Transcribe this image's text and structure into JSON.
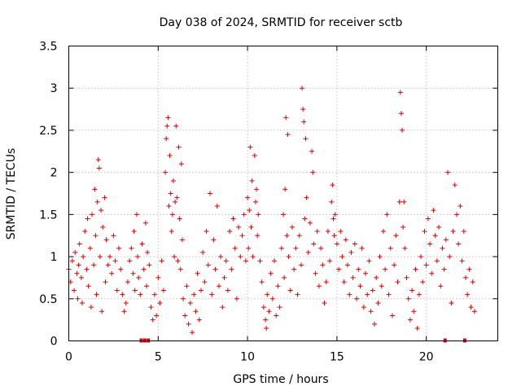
{
  "chart_data": {
    "type": "scatter",
    "title": "Day 038 of 2024, SRMTID for receiver sctb",
    "xlabel": "GPS time / hours",
    "ylabel": "SRMTID / TECUs",
    "xlim": [
      0,
      24
    ],
    "ylim": [
      0,
      3.5
    ],
    "x_ticks": [
      0,
      5,
      10,
      15,
      20
    ],
    "y_ticks": [
      0,
      0.5,
      1,
      1.5,
      2,
      2.5,
      3,
      3.5
    ],
    "x_tick_labels": [
      "0",
      "5",
      "10",
      "15",
      "20"
    ],
    "y_tick_labels": [
      "0",
      "0.5",
      "1",
      "1.5",
      "2",
      "2.5",
      "3",
      "3.5"
    ],
    "grid": true,
    "marker": "plus",
    "color": "#e00000",
    "series": [
      {
        "name": "SRMTID",
        "points": [
          [
            0.0,
            0.85
          ],
          [
            0.1,
            0.7
          ],
          [
            0.2,
            0.95
          ],
          [
            0.3,
            0.6
          ],
          [
            0.35,
            1.05
          ],
          [
            0.45,
            0.8
          ],
          [
            0.5,
            0.5
          ],
          [
            0.55,
            0.9
          ],
          [
            0.6,
            1.15
          ],
          [
            0.7,
            0.75
          ],
          [
            0.75,
            0.45
          ],
          [
            0.8,
            1.0
          ],
          [
            0.9,
            1.3
          ],
          [
            1.0,
            0.85
          ],
          [
            1.05,
            1.45
          ],
          [
            1.1,
            0.65
          ],
          [
            1.2,
            1.1
          ],
          [
            1.25,
            0.4
          ],
          [
            1.3,
            1.5
          ],
          [
            1.4,
            0.9
          ],
          [
            1.45,
            1.8
          ],
          [
            1.5,
            1.25
          ],
          [
            1.55,
            0.55
          ],
          [
            1.6,
            1.65
          ],
          [
            1.65,
            2.15
          ],
          [
            1.7,
            2.05
          ],
          [
            1.75,
            1.0
          ],
          [
            1.8,
            1.55
          ],
          [
            1.85,
            0.35
          ],
          [
            1.9,
            1.35
          ],
          [
            2.0,
            1.7
          ],
          [
            2.05,
            0.7
          ],
          [
            2.1,
            1.2
          ],
          [
            2.2,
            0.9
          ],
          [
            2.3,
            1.0
          ],
          [
            2.4,
            0.8
          ],
          [
            2.5,
            1.25
          ],
          [
            2.6,
            0.95
          ],
          [
            2.7,
            0.6
          ],
          [
            2.8,
            1.1
          ],
          [
            2.9,
            0.85
          ],
          [
            3.0,
            0.55
          ],
          [
            3.1,
            0.35
          ],
          [
            3.2,
            0.45
          ],
          [
            3.3,
            0.7
          ],
          [
            3.4,
            0.95
          ],
          [
            3.5,
            1.1
          ],
          [
            3.6,
            0.8
          ],
          [
            3.65,
            1.3
          ],
          [
            3.7,
            0.6
          ],
          [
            3.8,
            1.5
          ],
          [
            3.85,
            1.0
          ],
          [
            3.9,
            0.75
          ],
          [
            4.0,
            0.55
          ],
          [
            4.1,
            1.15
          ],
          [
            4.2,
            0.85
          ],
          [
            4.3,
            1.4
          ],
          [
            4.35,
            0.65
          ],
          [
            4.4,
            1.05
          ],
          [
            4.5,
            0.9
          ],
          [
            4.6,
            0.4
          ],
          [
            4.7,
            0.25
          ],
          [
            4.8,
            0.55
          ],
          [
            4.9,
            0.3
          ],
          [
            5.0,
            0.75
          ],
          [
            5.1,
            0.45
          ],
          [
            5.2,
            0.95
          ],
          [
            5.3,
            0.6
          ],
          [
            5.4,
            2.0
          ],
          [
            5.45,
            2.4
          ],
          [
            5.5,
            2.55
          ],
          [
            5.55,
            2.65
          ],
          [
            5.6,
            1.6
          ],
          [
            5.65,
            2.2
          ],
          [
            5.7,
            1.75
          ],
          [
            5.75,
            1.3
          ],
          [
            5.8,
            1.5
          ],
          [
            5.85,
            1.9
          ],
          [
            5.9,
            1.0
          ],
          [
            5.95,
            1.65
          ],
          [
            6.0,
            2.55
          ],
          [
            6.05,
            1.7
          ],
          [
            6.1,
            0.95
          ],
          [
            6.15,
            2.3
          ],
          [
            6.2,
            1.45
          ],
          [
            6.25,
            0.85
          ],
          [
            6.3,
            2.1
          ],
          [
            6.35,
            1.2
          ],
          [
            6.4,
            0.5
          ],
          [
            6.5,
            0.3
          ],
          [
            6.6,
            0.65
          ],
          [
            6.7,
            0.2
          ],
          [
            6.8,
            0.45
          ],
          [
            6.9,
            0.1
          ],
          [
            7.0,
            0.55
          ],
          [
            7.1,
            0.35
          ],
          [
            7.2,
            0.8
          ],
          [
            7.3,
            0.25
          ],
          [
            7.4,
            0.6
          ],
          [
            7.5,
            1.05
          ],
          [
            7.6,
            0.7
          ],
          [
            7.7,
            1.3
          ],
          [
            7.8,
            0.9
          ],
          [
            7.9,
            1.75
          ],
          [
            8.0,
            0.55
          ],
          [
            8.1,
            1.2
          ],
          [
            8.2,
            0.85
          ],
          [
            8.3,
            1.6
          ],
          [
            8.4,
            0.65
          ],
          [
            8.5,
            1.0
          ],
          [
            8.6,
            0.4
          ],
          [
            8.7,
            0.75
          ],
          [
            8.8,
            0.95
          ],
          [
            8.9,
            0.6
          ],
          [
            9.0,
            1.3
          ],
          [
            9.1,
            0.85
          ],
          [
            9.2,
            1.45
          ],
          [
            9.3,
            1.1
          ],
          [
            9.4,
            0.5
          ],
          [
            9.5,
            1.35
          ],
          [
            9.6,
            1.0
          ],
          [
            9.7,
            1.25
          ],
          [
            9.8,
            1.5
          ],
          [
            9.9,
            0.95
          ],
          [
            10.0,
            1.7
          ],
          [
            10.05,
            1.1
          ],
          [
            10.1,
            1.55
          ],
          [
            10.15,
            2.3
          ],
          [
            10.2,
            1.35
          ],
          [
            10.25,
            1.9
          ],
          [
            10.3,
            1.0
          ],
          [
            10.4,
            2.2
          ],
          [
            10.45,
            1.65
          ],
          [
            10.5,
            1.8
          ],
          [
            10.55,
            1.25
          ],
          [
            10.6,
            1.5
          ],
          [
            10.7,
            0.95
          ],
          [
            10.8,
            0.7
          ],
          [
            10.9,
            0.4
          ],
          [
            11.0,
            0.25
          ],
          [
            11.05,
            0.15
          ],
          [
            11.1,
            0.55
          ],
          [
            11.2,
            0.35
          ],
          [
            11.3,
            0.8
          ],
          [
            11.4,
            0.5
          ],
          [
            11.5,
            0.95
          ],
          [
            11.6,
            0.3
          ],
          [
            11.7,
            0.65
          ],
          [
            11.8,
            0.4
          ],
          [
            11.9,
            1.1
          ],
          [
            12.0,
            1.5
          ],
          [
            12.05,
            0.75
          ],
          [
            12.1,
            1.8
          ],
          [
            12.15,
            2.65
          ],
          [
            12.2,
            1.25
          ],
          [
            12.25,
            2.45
          ],
          [
            12.3,
            1.0
          ],
          [
            12.4,
            0.6
          ],
          [
            12.5,
            1.35
          ],
          [
            12.6,
            0.85
          ],
          [
            12.7,
            1.1
          ],
          [
            12.8,
            0.55
          ],
          [
            12.9,
            1.25
          ],
          [
            13.0,
            0.9
          ],
          [
            13.05,
            3.0
          ],
          [
            13.1,
            2.75
          ],
          [
            13.15,
            2.6
          ],
          [
            13.2,
            1.45
          ],
          [
            13.25,
            2.4
          ],
          [
            13.3,
            1.7
          ],
          [
            13.4,
            1.05
          ],
          [
            13.5,
            1.4
          ],
          [
            13.6,
            2.25
          ],
          [
            13.65,
            2.0
          ],
          [
            13.7,
            1.15
          ],
          [
            13.8,
            0.8
          ],
          [
            13.9,
            1.3
          ],
          [
            14.0,
            0.65
          ],
          [
            14.1,
            1.1
          ],
          [
            14.2,
            0.9
          ],
          [
            14.3,
            0.45
          ],
          [
            14.4,
            0.7
          ],
          [
            14.5,
            1.3
          ],
          [
            14.6,
            0.95
          ],
          [
            14.7,
            1.65
          ],
          [
            14.75,
            1.85
          ],
          [
            14.8,
            1.45
          ],
          [
            14.85,
            1.25
          ],
          [
            14.9,
            1.5
          ],
          [
            15.0,
            1.15
          ],
          [
            15.1,
            0.85
          ],
          [
            15.2,
            1.3
          ],
          [
            15.3,
            1.0
          ],
          [
            15.4,
            0.7
          ],
          [
            15.5,
            1.2
          ],
          [
            15.6,
            0.9
          ],
          [
            15.7,
            0.55
          ],
          [
            15.8,
            1.05
          ],
          [
            15.9,
            0.75
          ],
          [
            16.0,
            1.15
          ],
          [
            16.1,
            0.5
          ],
          [
            16.2,
            0.85
          ],
          [
            16.3,
            0.65
          ],
          [
            16.4,
            1.1
          ],
          [
            16.5,
            0.4
          ],
          [
            16.6,
            0.8
          ],
          [
            16.7,
            0.55
          ],
          [
            16.8,
            0.95
          ],
          [
            16.9,
            0.35
          ],
          [
            17.0,
            0.6
          ],
          [
            17.1,
            0.2
          ],
          [
            17.2,
            0.75
          ],
          [
            17.3,
            0.45
          ],
          [
            17.4,
            1.0
          ],
          [
            17.5,
            0.65
          ],
          [
            17.6,
            1.3
          ],
          [
            17.7,
            0.85
          ],
          [
            17.8,
            1.5
          ],
          [
            17.9,
            0.55
          ],
          [
            18.0,
            1.1
          ],
          [
            18.1,
            0.3
          ],
          [
            18.2,
            0.9
          ],
          [
            18.3,
            1.25
          ],
          [
            18.4,
            0.7
          ],
          [
            18.5,
            1.65
          ],
          [
            18.55,
            2.95
          ],
          [
            18.6,
            2.7
          ],
          [
            18.65,
            2.5
          ],
          [
            18.7,
            1.35
          ],
          [
            18.75,
            1.65
          ],
          [
            18.8,
            1.1
          ],
          [
            18.9,
            0.75
          ],
          [
            19.0,
            0.5
          ],
          [
            19.1,
            0.25
          ],
          [
            19.2,
            0.6
          ],
          [
            19.3,
            0.35
          ],
          [
            19.4,
            0.85
          ],
          [
            19.5,
            0.15
          ],
          [
            19.6,
            0.55
          ],
          [
            19.7,
            1.0
          ],
          [
            19.8,
            0.7
          ],
          [
            19.9,
            1.3
          ],
          [
            20.0,
            0.9
          ],
          [
            20.1,
            1.45
          ],
          [
            20.2,
            1.15
          ],
          [
            20.3,
            0.8
          ],
          [
            20.4,
            1.55
          ],
          [
            20.5,
            1.25
          ],
          [
            20.6,
            0.95
          ],
          [
            20.7,
            1.35
          ],
          [
            20.8,
            0.65
          ],
          [
            20.9,
            1.1
          ],
          [
            21.0,
            0.85
          ],
          [
            21.1,
            1.2
          ],
          [
            21.2,
            2.0
          ],
          [
            21.3,
            1.0
          ],
          [
            21.4,
            0.45
          ],
          [
            21.5,
            1.3
          ],
          [
            21.6,
            1.85
          ],
          [
            21.7,
            1.5
          ],
          [
            21.8,
            1.15
          ],
          [
            21.9,
            1.6
          ],
          [
            22.0,
            0.95
          ],
          [
            22.1,
            1.3
          ],
          [
            22.2,
            0.75
          ],
          [
            22.3,
            0.55
          ],
          [
            22.4,
            0.85
          ],
          [
            22.5,
            0.4
          ],
          [
            22.6,
            0.7
          ],
          [
            22.7,
            0.35
          ]
        ]
      }
    ],
    "rug_x": [
      4.05,
      4.25,
      4.45,
      21.05,
      22.15
    ]
  }
}
